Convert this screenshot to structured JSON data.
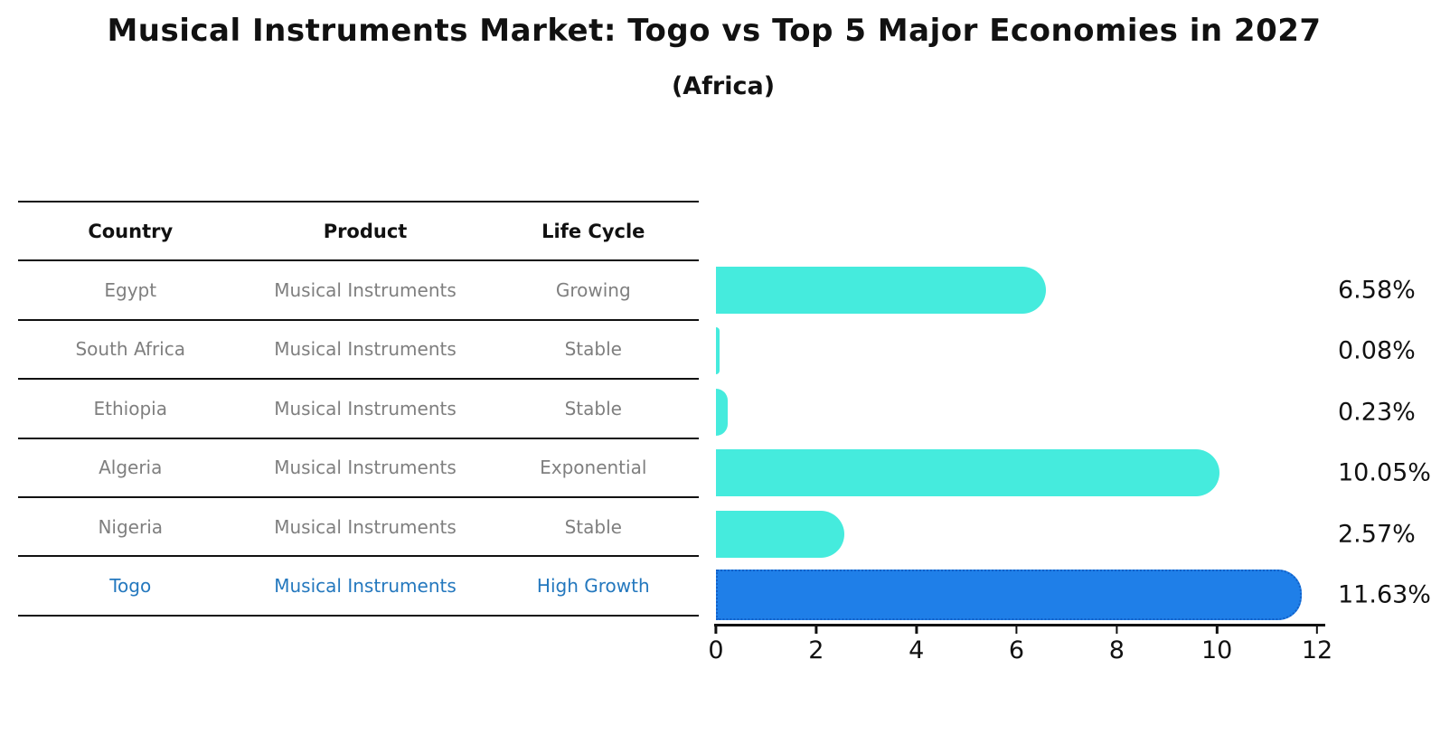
{
  "chart_data": {
    "type": "bar",
    "orientation": "horizontal",
    "title": "Musical Instruments Market: Togo vs Top 5 Major Economies in 2027",
    "subtitle": "(Africa)",
    "categories": [
      "Egypt",
      "South Africa",
      "Ethiopia",
      "Algeria",
      "Nigeria",
      "Togo"
    ],
    "values": [
      6.58,
      0.08,
      0.23,
      10.05,
      2.57,
      11.63
    ],
    "value_labels": [
      "6.58%",
      "0.08%",
      "0.23%",
      "10.05%",
      "2.57%",
      "11.63%"
    ],
    "xlim": [
      0,
      12
    ],
    "xticks": [
      "0",
      "2",
      "4",
      "6",
      "8",
      "10",
      "12"
    ],
    "highlight_index": 5,
    "grid": false,
    "legend": "none",
    "colors": {
      "bar": "#45EBDD",
      "highlight_fill": "#1F7FE8",
      "highlight_edge": "#1160C8",
      "highlight_text": "#2478BE"
    }
  },
  "table": {
    "headers": [
      "Country",
      "Product",
      "Life Cycle"
    ],
    "rows": [
      {
        "country": "Egypt",
        "product": "Musical Instruments",
        "life_cycle": "Growing"
      },
      {
        "country": "South Africa",
        "product": "Musical Instruments",
        "life_cycle": "Stable"
      },
      {
        "country": "Ethiopia",
        "product": "Musical Instruments",
        "life_cycle": "Stable"
      },
      {
        "country": "Algeria",
        "product": "Musical Instruments",
        "life_cycle": "Exponential"
      },
      {
        "country": "Nigeria",
        "product": "Musical Instruments",
        "life_cycle": "Stable"
      },
      {
        "country": "Togo",
        "product": "Musical Instruments",
        "life_cycle": "High Growth"
      }
    ]
  }
}
